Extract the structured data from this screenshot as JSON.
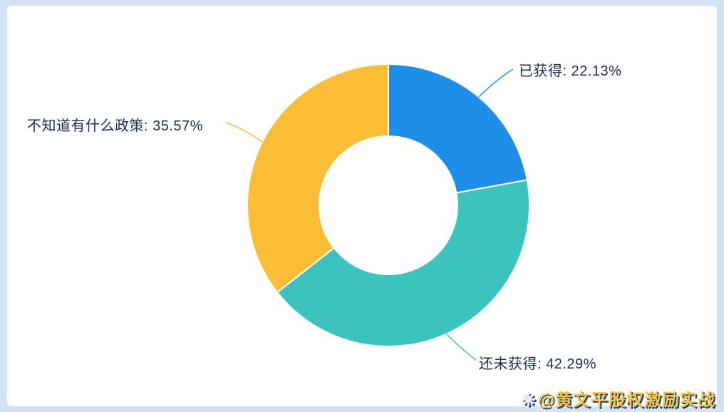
{
  "chart_data": {
    "type": "pie",
    "donut": true,
    "inner_radius_ratio": 0.49,
    "start_angle_deg": 0,
    "clockwise": true,
    "title": "",
    "legend_position": "none",
    "unit": "%",
    "label_color": "#1b2c4f",
    "segments": [
      {
        "label": "已获得",
        "value": 22.13,
        "color": "#1f8ee9",
        "display": "已获得: 22.13%"
      },
      {
        "label": "还未获得",
        "value": 42.29,
        "color": "#3bc3bd",
        "display": "还未获得: 42.29%"
      },
      {
        "label": "不知道有什么政策",
        "value": 35.57,
        "color": "#f9be35",
        "display": "不知道有什么政策: 35.57%"
      }
    ]
  },
  "watermark": {
    "icon_glyph": "❋",
    "icon_color": "#e8edf2",
    "text": "@黄文平股权激励实战",
    "color": "#f8c53e",
    "shadow_color": "#1e3f74"
  }
}
